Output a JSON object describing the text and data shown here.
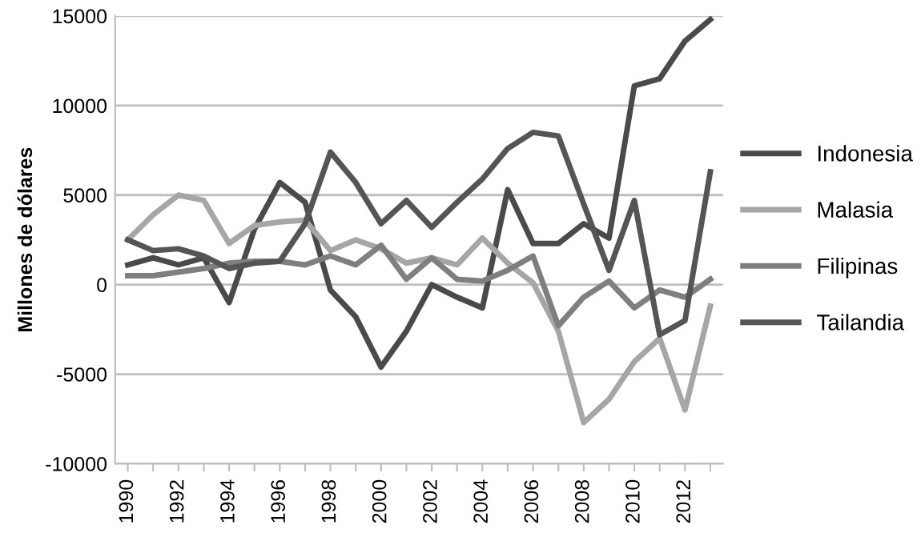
{
  "chart_data": {
    "type": "line",
    "ylabel": "Millones de dólares",
    "categories": [
      "1990",
      null,
      "1992",
      null,
      "1994",
      null,
      "1996",
      null,
      "1998",
      null,
      "2000",
      null,
      "2002",
      null,
      "2004",
      null,
      "2006",
      null,
      "2008",
      null,
      "2010",
      null,
      "2012",
      null
    ],
    "series": [
      {
        "name": "Indonesia",
        "color": "#4a4a4a",
        "values": [
          1100,
          1500,
          1100,
          1500,
          -1000,
          3100,
          5700,
          4600,
          -300,
          -1800,
          -4600,
          -2600,
          0,
          -700,
          -1300,
          5300,
          2300,
          2300,
          3400,
          2600,
          11100,
          11500,
          13600,
          14800
        ]
      },
      {
        "name": "Malasia",
        "color": "#a6a6a6",
        "values": [
          2500,
          3900,
          5000,
          4700,
          2300,
          3300,
          3500,
          3600,
          1900,
          2500,
          2000,
          1200,
          1500,
          1100,
          2600,
          1200,
          100,
          -2600,
          -7700,
          -6400,
          -4300,
          -3000,
          -7000,
          -1200
        ]
      },
      {
        "name": "Filipinas",
        "color": "#7f7f7f",
        "values": [
          500,
          500,
          700,
          900,
          1200,
          1300,
          1300,
          1100,
          1600,
          1100,
          2200,
          300,
          1500,
          300,
          200,
          800,
          1600,
          -2300,
          -700,
          200,
          -1300,
          -300,
          -700,
          300
        ]
      },
      {
        "name": "Tailandia",
        "color": "#555555",
        "values": [
          2500,
          1900,
          2000,
          1600,
          900,
          1200,
          1300,
          3400,
          7400,
          5700,
          3400,
          4700,
          3200,
          4600,
          5900,
          7600,
          8500,
          8300,
          4500,
          800,
          4700,
          -2800,
          -2000,
          6300
        ]
      }
    ],
    "ylim": [
      -10000,
      15000
    ],
    "yticks": [
      -10000,
      -5000,
      0,
      5000,
      10000,
      15000
    ],
    "grid": "y",
    "legend": "right",
    "marker": "none",
    "line_style": "solid"
  }
}
